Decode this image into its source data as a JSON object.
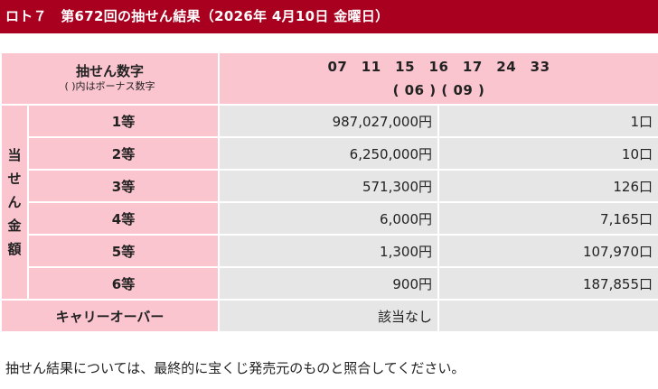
{
  "header": {
    "title": "ロト７　第672回の抽せん結果（2026年 4月10日 金曜日）"
  },
  "numbers": {
    "label": "抽せん数字",
    "note": "( )内はボーナス数字",
    "main": "07　11　15　16　17　24　33",
    "bonus": "( 06 ) ( 09 )"
  },
  "prizes_label": [
    "当",
    "せ",
    "ん",
    "金",
    "額"
  ],
  "prizes": [
    {
      "rank": "1等",
      "amount": "987,027,000円",
      "winners": "1口"
    },
    {
      "rank": "2等",
      "amount": "6,250,000円",
      "winners": "10口"
    },
    {
      "rank": "3等",
      "amount": "571,300円",
      "winners": "126口"
    },
    {
      "rank": "4等",
      "amount": "6,000円",
      "winners": "7,165口"
    },
    {
      "rank": "5等",
      "amount": "1,300円",
      "winners": "107,970口"
    },
    {
      "rank": "6等",
      "amount": "900円",
      "winners": "187,855口"
    }
  ],
  "carryover": {
    "label": "キャリーオーバー",
    "value": "該当なし"
  },
  "footnote": "抽せん結果については、最終的に宝くじ発売元のものと照合してください。"
}
